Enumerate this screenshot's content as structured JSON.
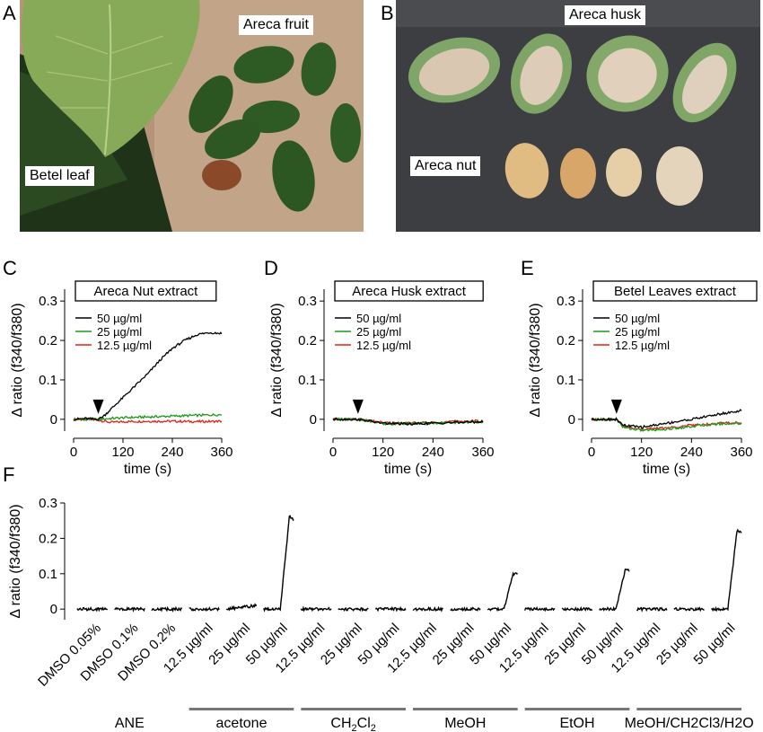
{
  "panels": {
    "A": {
      "letter": "A",
      "labels": {
        "fruit": "Areca fruit",
        "leaf": "Betel leaf"
      }
    },
    "B": {
      "letter": "B",
      "labels": {
        "husk": "Areca husk",
        "nut": "Areca nut"
      }
    },
    "C": {
      "letter": "C"
    },
    "D": {
      "letter": "D"
    },
    "E": {
      "letter": "E"
    },
    "F": {
      "letter": "F"
    }
  },
  "colors": {
    "c50": "#000000",
    "c25": "#1a9b1a",
    "c12": "#e0221c",
    "axis": "#000000",
    "bar": "#777777"
  },
  "chart_data": [
    {
      "id": "C",
      "type": "line",
      "title": "Areca Nut extract",
      "xlabel": "time (s)",
      "ylabel": "Δ ratio (f340/f380)",
      "xlim": [
        0,
        360
      ],
      "ylim": [
        -0.03,
        0.33
      ],
      "xticks": [
        0,
        120,
        240,
        360
      ],
      "yticks": [
        0,
        0.1,
        0.2,
        0.3
      ],
      "ytick_labels": [
        "0",
        "0.1",
        "0.2",
        "0.3"
      ],
      "marker_x": 60,
      "series": [
        {
          "name": "50 µg/ml",
          "color": "#000000",
          "x": [
            0,
            30,
            60,
            75,
            90,
            120,
            150,
            180,
            210,
            240,
            270,
            300,
            330,
            360
          ],
          "y": [
            0,
            0.002,
            0,
            0.01,
            0.025,
            0.055,
            0.085,
            0.115,
            0.15,
            0.18,
            0.2,
            0.215,
            0.22,
            0.218
          ]
        },
        {
          "name": "25 µg/ml",
          "color": "#1a9b1a",
          "x": [
            0,
            60,
            90,
            120,
            180,
            240,
            300,
            360
          ],
          "y": [
            0,
            0,
            0.002,
            0.004,
            0.006,
            0.008,
            0.01,
            0.012
          ]
        },
        {
          "name": "12.5 µg/ml",
          "color": "#e0221c",
          "x": [
            0,
            60,
            90,
            120,
            180,
            240,
            300,
            360
          ],
          "y": [
            0,
            -0.002,
            -0.008,
            -0.006,
            -0.005,
            -0.005,
            -0.006,
            -0.005
          ]
        }
      ]
    },
    {
      "id": "D",
      "type": "line",
      "title": "Areca Husk extract",
      "xlabel": "time (s)",
      "ylabel": "Δ ratio (f340/f380)",
      "xlim": [
        0,
        360
      ],
      "ylim": [
        -0.03,
        0.33
      ],
      "xticks": [
        0,
        120,
        240,
        360
      ],
      "yticks": [
        0,
        0.1,
        0.2,
        0.3
      ],
      "ytick_labels": [
        "0",
        "0.1",
        "0.2",
        "0.3"
      ],
      "marker_x": 60,
      "series": [
        {
          "name": "50 µg/ml",
          "color": "#000000",
          "x": [
            0,
            60,
            90,
            120,
            180,
            240,
            300,
            360
          ],
          "y": [
            0,
            0,
            -0.005,
            -0.01,
            -0.012,
            -0.01,
            -0.008,
            -0.006
          ]
        },
        {
          "name": "25 µg/ml",
          "color": "#1a9b1a",
          "x": [
            0,
            60,
            90,
            120,
            180,
            240,
            300,
            360
          ],
          "y": [
            0,
            0,
            -0.006,
            -0.012,
            -0.011,
            -0.01,
            -0.008,
            -0.006
          ]
        },
        {
          "name": "12.5 µg/ml",
          "color": "#e0221c",
          "x": [
            0,
            60,
            90,
            120,
            180,
            240,
            300,
            360
          ],
          "y": [
            0,
            0,
            -0.004,
            -0.009,
            -0.01,
            -0.008,
            -0.005,
            -0.004
          ]
        }
      ]
    },
    {
      "id": "E",
      "type": "line",
      "title": "Betel Leaves extract",
      "xlabel": "time (s)",
      "ylabel": "Δ ratio (f340/f380)",
      "xlim": [
        0,
        360
      ],
      "ylim": [
        -0.03,
        0.33
      ],
      "xticks": [
        0,
        120,
        240,
        360
      ],
      "yticks": [
        0,
        0.1,
        0.2,
        0.3
      ],
      "ytick_labels": [
        "0",
        "0.1",
        "0.2",
        "0.3"
      ],
      "marker_x": 60,
      "series": [
        {
          "name": "50 µg/ml",
          "color": "#000000",
          "x": [
            0,
            60,
            75,
            120,
            180,
            240,
            300,
            360
          ],
          "y": [
            0,
            0,
            -0.015,
            -0.02,
            -0.01,
            0,
            0.012,
            0.022
          ]
        },
        {
          "name": "25 µg/ml",
          "color": "#1a9b1a",
          "x": [
            0,
            60,
            75,
            120,
            180,
            240,
            300,
            360
          ],
          "y": [
            0,
            0,
            -0.02,
            -0.028,
            -0.025,
            -0.018,
            -0.012,
            -0.01
          ]
        },
        {
          "name": "12.5 µg/ml",
          "color": "#e0221c",
          "x": [
            0,
            60,
            75,
            120,
            180,
            240,
            300,
            360
          ],
          "y": [
            0,
            0,
            -0.018,
            -0.025,
            -0.022,
            -0.015,
            -0.01,
            -0.008
          ]
        }
      ]
    },
    {
      "id": "F",
      "type": "line",
      "ylabel": "Δ ratio (f340/f380)",
      "ylim": [
        -0.03,
        0.3
      ],
      "yticks": [
        0,
        0.1,
        0.2,
        0.3
      ],
      "ytick_labels": [
        "0",
        "0.1",
        "0.2",
        "0.3"
      ],
      "condition_labels": [
        "DMSO 0.05%",
        "DMSO 0.1%",
        "DMSO 0.2%",
        "12.5 µg/ml",
        "25 µg/ml",
        "50 µg/ml",
        "12.5 µg/ml",
        "25 µg/ml",
        "50 µg/ml",
        "12.5 µg/ml",
        "25 µg/ml",
        "50 µg/ml",
        "12.5 µg/ml",
        "25 µg/ml",
        "50 µg/ml",
        "12.5 µg/ml",
        "25 µg/ml",
        "50 µg/ml"
      ],
      "peak_values": [
        0,
        0,
        0,
        0,
        0.01,
        0.26,
        0,
        0,
        0,
        0,
        0,
        0.1,
        0,
        0,
        0.11,
        0,
        0,
        0.22
      ],
      "groups": [
        {
          "label": "ANE",
          "from": 0,
          "to": 2,
          "bar": false
        },
        {
          "label": "acetone",
          "from": 3,
          "to": 5,
          "bar": true
        },
        {
          "label": "CH2Cl2",
          "label_main": "CH",
          "label_sub1": "2",
          "label_mid": "Cl",
          "label_sub2": "2",
          "from": 6,
          "to": 8,
          "bar": true
        },
        {
          "label": "MeOH",
          "from": 9,
          "to": 11,
          "bar": true
        },
        {
          "label": "EtOH",
          "from": 12,
          "to": 14,
          "bar": true
        },
        {
          "label": "MeOH/CH2Cl3/H2O",
          "from": 15,
          "to": 17,
          "bar": true
        }
      ]
    }
  ]
}
